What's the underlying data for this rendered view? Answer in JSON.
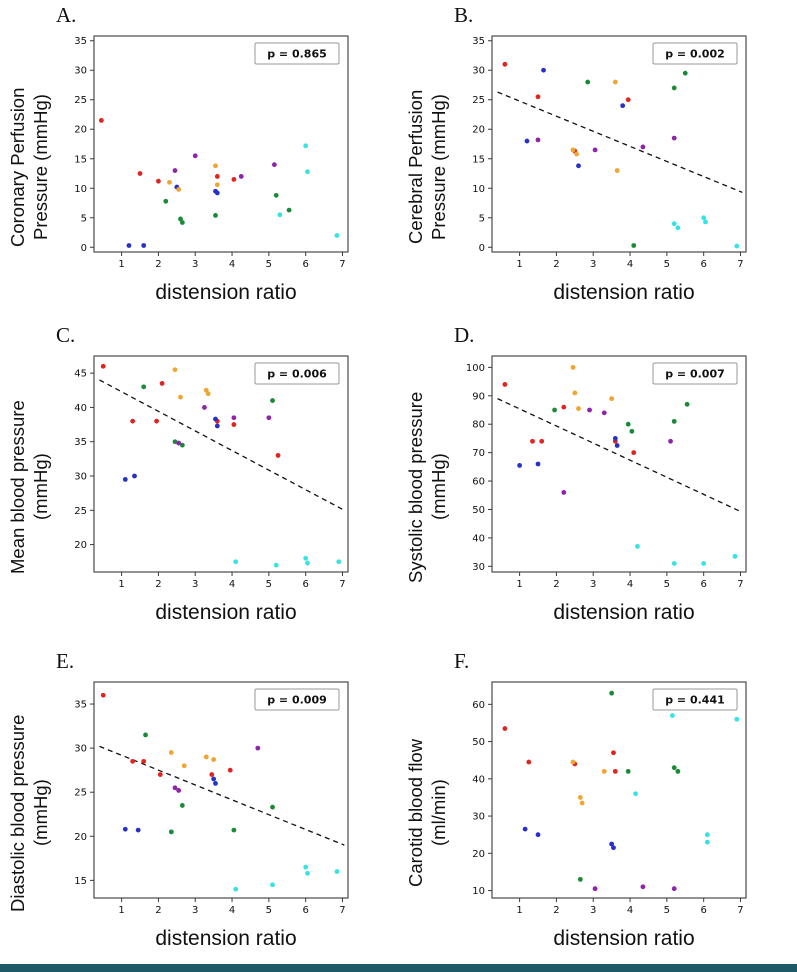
{
  "figure": {
    "background": "#ffffff",
    "bottom_bar_color": "#1d5a68"
  },
  "series_colors": {
    "red": "#e02420",
    "blue": "#2731c8",
    "orange": "#f0a431",
    "green": "#1a8a39",
    "purple": "#8e24aa",
    "cyan": "#35e3e3"
  },
  "chart_data": [
    {
      "panel": "A.",
      "type": "scatter",
      "ylabel_lines": [
        "Coronary Perfusion",
        "Pressure (mmHg)"
      ],
      "xlabel": "distension ratio",
      "p_label": "p = 0.865",
      "xlim": [
        0.25,
        7.15
      ],
      "ylim": [
        -0.8,
        35.8
      ],
      "xticks": [
        1,
        2,
        3,
        4,
        5,
        6,
        7
      ],
      "yticks": [
        0,
        5,
        10,
        15,
        20,
        25,
        30,
        35
      ],
      "trend": null,
      "points": [
        [
          0.45,
          21.5,
          "red"
        ],
        [
          1.5,
          12.5,
          "red"
        ],
        [
          2.0,
          11.2,
          "red"
        ],
        [
          3.6,
          12.0,
          "red"
        ],
        [
          4.05,
          11.5,
          "red"
        ],
        [
          1.2,
          0.3,
          "blue"
        ],
        [
          1.6,
          0.3,
          "blue"
        ],
        [
          2.5,
          10.2,
          "blue"
        ],
        [
          3.55,
          9.5,
          "blue"
        ],
        [
          3.6,
          9.2,
          "blue"
        ],
        [
          2.3,
          11.0,
          "orange"
        ],
        [
          2.55,
          9.8,
          "orange"
        ],
        [
          3.55,
          13.8,
          "orange"
        ],
        [
          3.6,
          10.6,
          "orange"
        ],
        [
          2.2,
          7.8,
          "green"
        ],
        [
          2.6,
          4.8,
          "green"
        ],
        [
          2.65,
          4.2,
          "green"
        ],
        [
          3.55,
          5.4,
          "green"
        ],
        [
          5.2,
          8.8,
          "green"
        ],
        [
          5.55,
          6.3,
          "green"
        ],
        [
          2.45,
          13.0,
          "purple"
        ],
        [
          3.0,
          15.5,
          "purple"
        ],
        [
          4.25,
          12.0,
          "purple"
        ],
        [
          5.15,
          14.0,
          "purple"
        ],
        [
          6.0,
          17.2,
          "cyan"
        ],
        [
          6.05,
          12.8,
          "cyan"
        ],
        [
          5.3,
          5.5,
          "cyan"
        ],
        [
          6.85,
          2.0,
          "cyan"
        ]
      ]
    },
    {
      "panel": "B.",
      "type": "scatter",
      "ylabel_lines": [
        "Cerebral Perfusion",
        "Pressure (mmHg)"
      ],
      "xlabel": "distension ratio",
      "p_label": "p = 0.002",
      "xlim": [
        0.25,
        7.15
      ],
      "ylim": [
        -0.8,
        35.8
      ],
      "xticks": [
        1,
        2,
        3,
        4,
        5,
        6,
        7
      ],
      "yticks": [
        0,
        5,
        10,
        15,
        20,
        25,
        30,
        35
      ],
      "trend": {
        "x1": 0.4,
        "y1": 26.3,
        "x2": 7.05,
        "y2": 9.3
      },
      "points": [
        [
          0.6,
          31.0,
          "red"
        ],
        [
          1.5,
          25.5,
          "red"
        ],
        [
          2.5,
          16.3,
          "red"
        ],
        [
          3.95,
          25.0,
          "red"
        ],
        [
          1.2,
          18.0,
          "blue"
        ],
        [
          1.65,
          30.0,
          "blue"
        ],
        [
          2.6,
          13.8,
          "blue"
        ],
        [
          3.8,
          24.0,
          "blue"
        ],
        [
          2.45,
          16.5,
          "orange"
        ],
        [
          2.55,
          15.8,
          "orange"
        ],
        [
          3.6,
          28.0,
          "orange"
        ],
        [
          3.65,
          13.0,
          "orange"
        ],
        [
          2.85,
          28.0,
          "green"
        ],
        [
          4.1,
          0.3,
          "green"
        ],
        [
          5.2,
          27.0,
          "green"
        ],
        [
          5.5,
          29.5,
          "green"
        ],
        [
          1.5,
          18.2,
          "purple"
        ],
        [
          3.05,
          16.5,
          "purple"
        ],
        [
          4.35,
          17.0,
          "purple"
        ],
        [
          5.2,
          18.5,
          "purple"
        ],
        [
          5.2,
          4.0,
          "cyan"
        ],
        [
          5.3,
          3.3,
          "cyan"
        ],
        [
          6.0,
          5.0,
          "cyan"
        ],
        [
          6.05,
          4.3,
          "cyan"
        ],
        [
          6.9,
          0.2,
          "cyan"
        ]
      ]
    },
    {
      "panel": "C.",
      "type": "scatter",
      "ylabel_lines": [
        "Mean blood pressure",
        "(mmHg)"
      ],
      "xlabel": "distension ratio",
      "p_label": "p = 0.006",
      "xlim": [
        0.25,
        7.15
      ],
      "ylim": [
        16,
        47.5
      ],
      "xticks": [
        1,
        2,
        3,
        4,
        5,
        6,
        7
      ],
      "yticks": [
        20,
        25,
        30,
        35,
        40,
        45
      ],
      "trend": {
        "x1": 0.4,
        "y1": 44.0,
        "x2": 7.05,
        "y2": 25.0
      },
      "points": [
        [
          0.5,
          46.0,
          "red"
        ],
        [
          1.3,
          38.0,
          "red"
        ],
        [
          1.95,
          38.0,
          "red"
        ],
        [
          2.1,
          43.5,
          "red"
        ],
        [
          3.6,
          38.0,
          "red"
        ],
        [
          4.05,
          37.5,
          "red"
        ],
        [
          5.25,
          33.0,
          "red"
        ],
        [
          1.1,
          29.5,
          "blue"
        ],
        [
          1.35,
          30.0,
          "blue"
        ],
        [
          3.55,
          38.3,
          "blue"
        ],
        [
          3.6,
          37.3,
          "blue"
        ],
        [
          2.45,
          45.5,
          "orange"
        ],
        [
          2.6,
          41.5,
          "orange"
        ],
        [
          3.3,
          42.5,
          "orange"
        ],
        [
          3.35,
          42.0,
          "orange"
        ],
        [
          1.6,
          43.0,
          "green"
        ],
        [
          2.45,
          35.0,
          "green"
        ],
        [
          2.65,
          34.5,
          "green"
        ],
        [
          5.1,
          41.0,
          "green"
        ],
        [
          2.55,
          34.8,
          "purple"
        ],
        [
          3.25,
          40.0,
          "purple"
        ],
        [
          4.05,
          38.5,
          "purple"
        ],
        [
          5.0,
          38.5,
          "purple"
        ],
        [
          4.1,
          17.5,
          "cyan"
        ],
        [
          5.2,
          17.0,
          "cyan"
        ],
        [
          6.0,
          18.0,
          "cyan"
        ],
        [
          6.05,
          17.3,
          "cyan"
        ],
        [
          6.9,
          17.5,
          "cyan"
        ]
      ]
    },
    {
      "panel": "D.",
      "type": "scatter",
      "ylabel_lines": [
        "Systolic blood pressure",
        "(mmHg)"
      ],
      "xlabel": "distension ratio",
      "p_label": "p = 0.007",
      "xlim": [
        0.25,
        7.15
      ],
      "ylim": [
        28,
        104
      ],
      "xticks": [
        1,
        2,
        3,
        4,
        5,
        6,
        7
      ],
      "yticks": [
        30,
        40,
        50,
        60,
        70,
        80,
        90,
        100
      ],
      "trend": {
        "x1": 0.4,
        "y1": 89.0,
        "x2": 7.05,
        "y2": 49.0
      },
      "points": [
        [
          0.6,
          94.0,
          "red"
        ],
        [
          1.35,
          74.0,
          "red"
        ],
        [
          1.6,
          74.0,
          "red"
        ],
        [
          2.2,
          86.0,
          "red"
        ],
        [
          3.6,
          74.0,
          "red"
        ],
        [
          4.1,
          70.0,
          "red"
        ],
        [
          1.0,
          65.5,
          "blue"
        ],
        [
          1.5,
          66.0,
          "blue"
        ],
        [
          3.6,
          75.0,
          "blue"
        ],
        [
          3.65,
          72.5,
          "blue"
        ],
        [
          2.45,
          100.0,
          "orange"
        ],
        [
          2.5,
          91.0,
          "orange"
        ],
        [
          3.5,
          89.0,
          "orange"
        ],
        [
          2.6,
          85.5,
          "orange"
        ],
        [
          1.95,
          85.0,
          "green"
        ],
        [
          3.95,
          80.0,
          "green"
        ],
        [
          4.05,
          77.5,
          "green"
        ],
        [
          5.2,
          81.0,
          "green"
        ],
        [
          5.55,
          87.0,
          "green"
        ],
        [
          2.2,
          56.0,
          "purple"
        ],
        [
          2.9,
          85.0,
          "purple"
        ],
        [
          3.3,
          84.0,
          "purple"
        ],
        [
          5.1,
          74.0,
          "purple"
        ],
        [
          4.2,
          37.0,
          "cyan"
        ],
        [
          5.2,
          31.0,
          "cyan"
        ],
        [
          6.0,
          31.0,
          "cyan"
        ],
        [
          6.85,
          33.5,
          "cyan"
        ]
      ]
    },
    {
      "panel": "E.",
      "type": "scatter",
      "ylabel_lines": [
        "Diastolic blood pressure",
        "(mmHg)"
      ],
      "xlabel": "distension ratio",
      "p_label": "p = 0.009",
      "xlim": [
        0.25,
        7.15
      ],
      "ylim": [
        13,
        37.5
      ],
      "xticks": [
        1,
        2,
        3,
        4,
        5,
        6,
        7
      ],
      "yticks": [
        15,
        20,
        25,
        30,
        35
      ],
      "trend": {
        "x1": 0.4,
        "y1": 30.2,
        "x2": 7.05,
        "y2": 19.0
      },
      "points": [
        [
          0.5,
          36.0,
          "red"
        ],
        [
          1.3,
          28.5,
          "red"
        ],
        [
          1.6,
          28.5,
          "red"
        ],
        [
          2.05,
          27.0,
          "red"
        ],
        [
          3.45,
          27.0,
          "red"
        ],
        [
          3.95,
          27.5,
          "red"
        ],
        [
          1.1,
          20.8,
          "blue"
        ],
        [
          1.45,
          20.7,
          "blue"
        ],
        [
          3.5,
          26.5,
          "blue"
        ],
        [
          3.55,
          26.0,
          "blue"
        ],
        [
          2.35,
          29.5,
          "orange"
        ],
        [
          2.7,
          28.0,
          "orange"
        ],
        [
          3.3,
          29.0,
          "orange"
        ],
        [
          3.5,
          28.7,
          "orange"
        ],
        [
          1.65,
          31.5,
          "green"
        ],
        [
          2.35,
          20.5,
          "green"
        ],
        [
          2.65,
          23.5,
          "green"
        ],
        [
          4.05,
          20.7,
          "green"
        ],
        [
          5.1,
          23.3,
          "green"
        ],
        [
          2.45,
          25.5,
          "purple"
        ],
        [
          2.55,
          25.2,
          "purple"
        ],
        [
          4.7,
          30.0,
          "purple"
        ],
        [
          4.1,
          14.0,
          "cyan"
        ],
        [
          5.1,
          14.5,
          "cyan"
        ],
        [
          6.0,
          16.5,
          "cyan"
        ],
        [
          6.05,
          15.8,
          "cyan"
        ],
        [
          6.85,
          16.0,
          "cyan"
        ]
      ]
    },
    {
      "panel": "F.",
      "type": "scatter",
      "ylabel_lines": [
        "Carotid blood flow",
        "(ml/min)"
      ],
      "xlabel": "distension ratio",
      "p_label": "p = 0.441",
      "xlim": [
        0.25,
        7.15
      ],
      "ylim": [
        8,
        66
      ],
      "xticks": [
        1,
        2,
        3,
        4,
        5,
        6,
        7
      ],
      "yticks": [
        10,
        20,
        30,
        40,
        50,
        60
      ],
      "trend": null,
      "points": [
        [
          0.6,
          53.5,
          "red"
        ],
        [
          1.25,
          44.5,
          "red"
        ],
        [
          2.5,
          44.0,
          "red"
        ],
        [
          3.55,
          47.0,
          "red"
        ],
        [
          3.6,
          42.0,
          "red"
        ],
        [
          1.15,
          26.5,
          "blue"
        ],
        [
          1.5,
          25.0,
          "blue"
        ],
        [
          3.5,
          22.5,
          "blue"
        ],
        [
          3.55,
          21.5,
          "blue"
        ],
        [
          2.45,
          44.5,
          "orange"
        ],
        [
          2.65,
          35.0,
          "orange"
        ],
        [
          2.7,
          33.5,
          "orange"
        ],
        [
          3.3,
          42.0,
          "orange"
        ],
        [
          2.65,
          13.0,
          "green"
        ],
        [
          3.5,
          63.0,
          "green"
        ],
        [
          3.95,
          42.0,
          "green"
        ],
        [
          5.2,
          43.0,
          "green"
        ],
        [
          5.3,
          42.0,
          "green"
        ],
        [
          3.05,
          10.5,
          "purple"
        ],
        [
          4.35,
          11.0,
          "purple"
        ],
        [
          5.2,
          10.5,
          "purple"
        ],
        [
          4.15,
          36.0,
          "cyan"
        ],
        [
          5.15,
          57.0,
          "cyan"
        ],
        [
          6.1,
          25.0,
          "cyan"
        ],
        [
          6.1,
          23.0,
          "cyan"
        ],
        [
          6.9,
          56.0,
          "cyan"
        ]
      ]
    }
  ]
}
